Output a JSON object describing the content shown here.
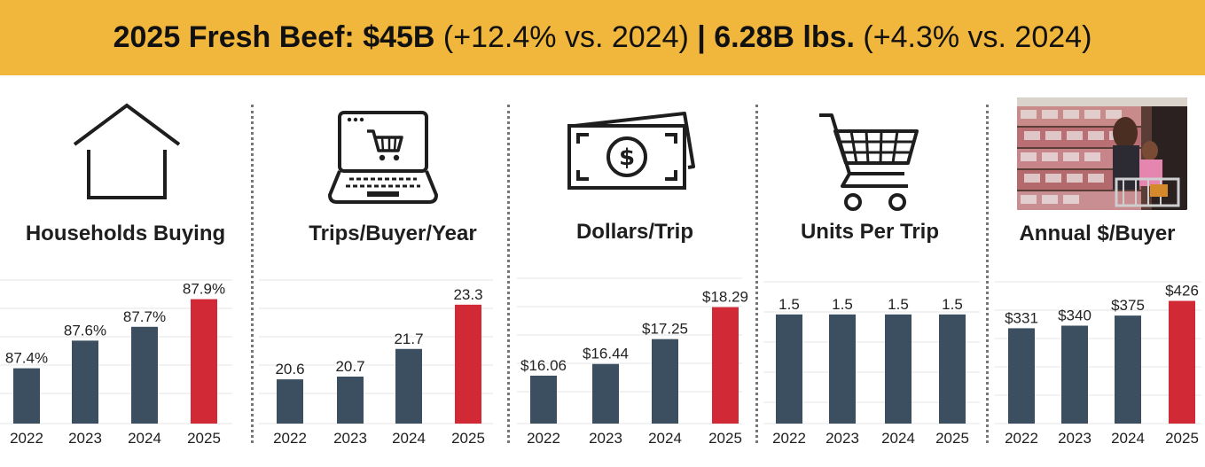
{
  "header": {
    "part1_bold": "2025 Fresh Beef: $45B",
    "part1_light": " (+12.4% vs. 2024) ",
    "part2_bold": "| 6.28B lbs.",
    "part2_light": " (+4.3% vs. 2024)"
  },
  "colors": {
    "banner": "#f0b73c",
    "bar": "#3b4f60",
    "highlight": "#d12a36"
  },
  "chart_data": [
    {
      "type": "bar",
      "title": "Households Buying",
      "icon": "house-icon",
      "categories": [
        "2022",
        "2023",
        "2024",
        "2025"
      ],
      "values": [
        87.4,
        87.6,
        87.7,
        87.9
      ],
      "labels": [
        "87.4%",
        "87.6%",
        "87.7%",
        "87.9%"
      ],
      "ylim": [
        87.0,
        88.0
      ],
      "highlight_index": 3,
      "grid": true
    },
    {
      "type": "bar",
      "title": "Trips/Buyer/Year",
      "icon": "laptop-cart-icon",
      "categories": [
        "2022",
        "2023",
        "2024",
        "2025"
      ],
      "values": [
        20.6,
        20.7,
        21.7,
        23.3
      ],
      "labels": [
        "20.6",
        "20.7",
        "21.7",
        "23.3"
      ],
      "ylim": [
        19.0,
        24.0
      ],
      "highlight_index": 3,
      "grid": true
    },
    {
      "type": "bar",
      "title": "Dollars/Trip",
      "icon": "money-icon",
      "categories": [
        "2022",
        "2023",
        "2024",
        "2025"
      ],
      "values": [
        16.06,
        16.44,
        17.25,
        18.29
      ],
      "labels": [
        "$16.06",
        "$16.44",
        "$17.25",
        "$18.29"
      ],
      "ylim": [
        14.5,
        19.0
      ],
      "highlight_index": 3,
      "grid": true
    },
    {
      "type": "bar",
      "title": "Units Per Trip",
      "icon": "shopping-cart-icon",
      "categories": [
        "2022",
        "2023",
        "2024",
        "2025"
      ],
      "values": [
        1.5,
        1.5,
        1.5,
        1.5
      ],
      "labels": [
        "1.5",
        "1.5",
        "1.5",
        "1.5"
      ],
      "ylim": [
        0,
        1.9
      ],
      "highlight_index": -1,
      "grid": true
    },
    {
      "type": "bar",
      "title": "Annual $/Buyer",
      "icon": "store-photo",
      "categories": [
        "2022",
        "2023",
        "2024",
        "2025"
      ],
      "values": [
        331,
        340,
        375,
        426
      ],
      "labels": [
        "$331",
        "$340",
        "$375",
        "$426"
      ],
      "ylim": [
        0,
        480
      ],
      "highlight_index": 3,
      "grid": true
    }
  ]
}
